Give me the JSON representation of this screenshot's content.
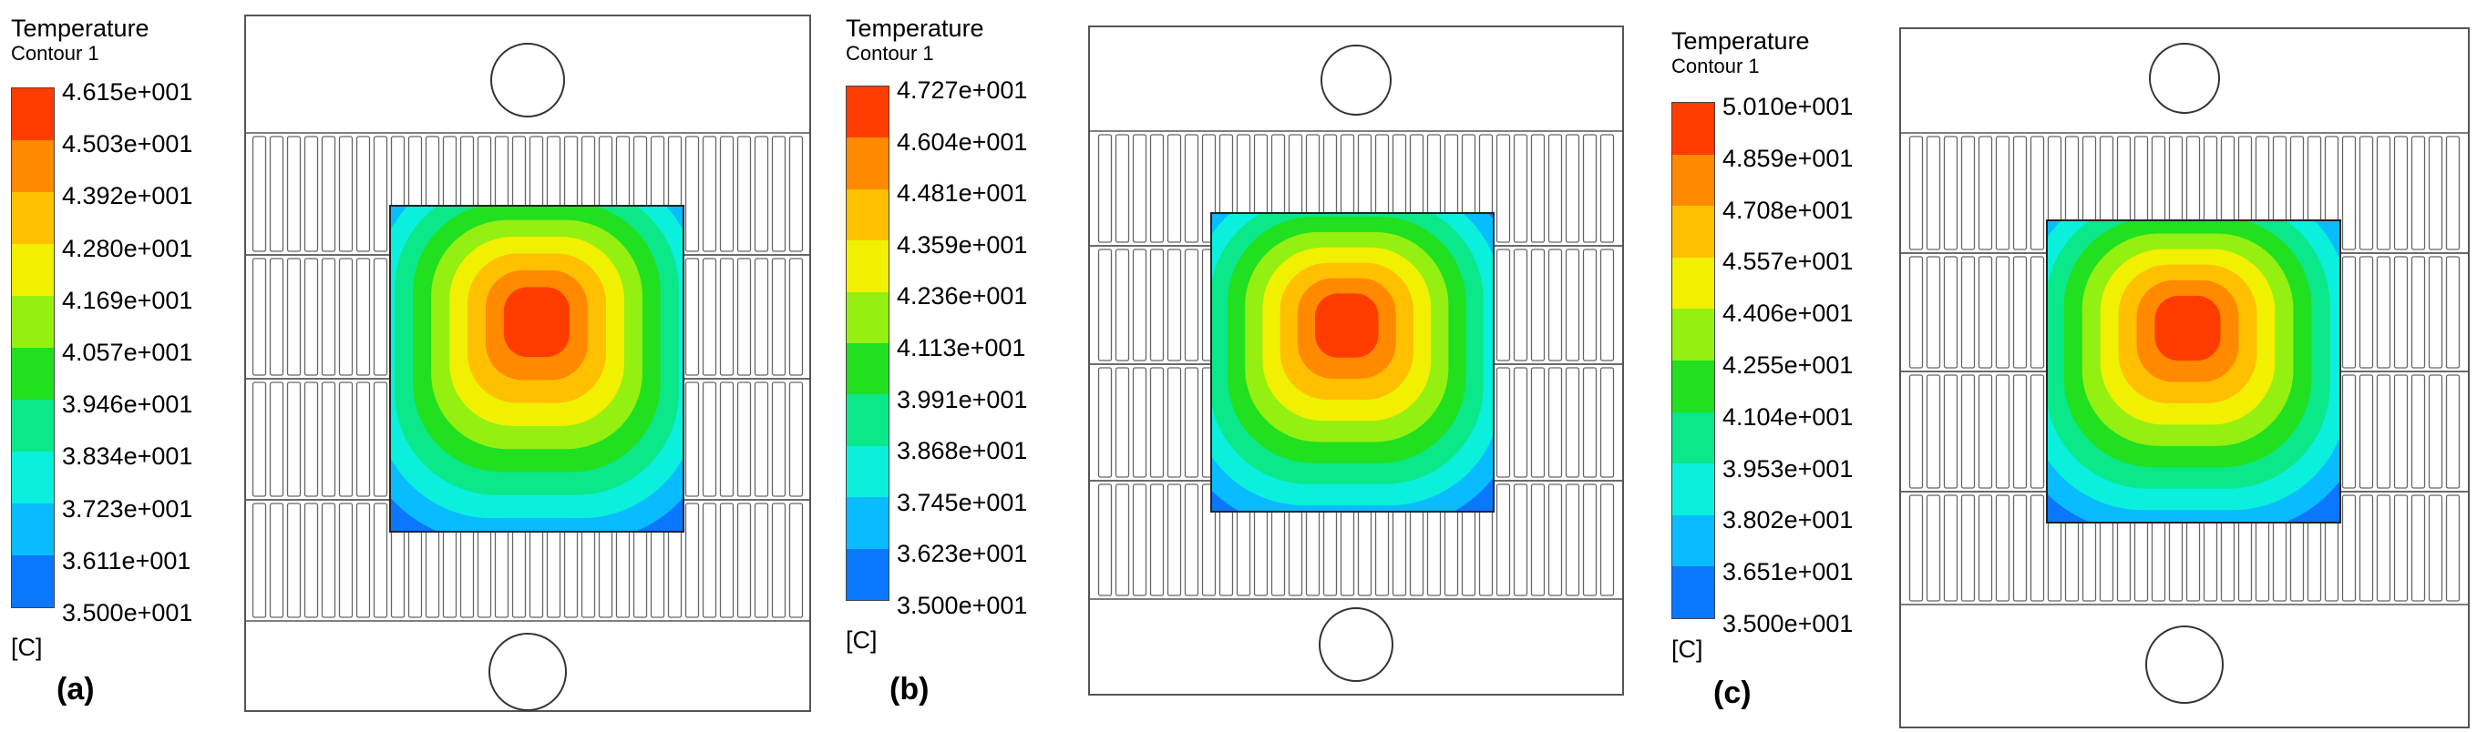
{
  "colors": {
    "contour_palette": [
      "#0a2cff",
      "#0a77ff",
      "#09bcff",
      "#0af0dc",
      "#0ae88a",
      "#20e020",
      "#93f010",
      "#f0f000",
      "#ffc000",
      "#ff8a00",
      "#ff3c00"
    ],
    "outline": "#555555",
    "background": "#ffffff"
  },
  "panels": [
    {
      "id": "a",
      "label": "(a)",
      "legend": {
        "title": "Temperature",
        "subtitle": "Contour 1",
        "unit": "[C]",
        "ticks": [
          "4.615e+001",
          "4.503e+001",
          "4.392e+001",
          "4.280e+001",
          "4.169e+001",
          "4.057e+001",
          "3.946e+001",
          "3.834e+001",
          "3.723e+001",
          "3.611e+001",
          "3.500e+001"
        ]
      },
      "field": {
        "max_temperature": 46.15,
        "min_temperature": 35.0
      }
    },
    {
      "id": "b",
      "label": "(b)",
      "legend": {
        "title": "Temperature",
        "subtitle": "Contour 1",
        "unit": "[C]",
        "ticks": [
          "4.727e+001",
          "4.604e+001",
          "4.481e+001",
          "4.359e+001",
          "4.236e+001",
          "4.113e+001",
          "3.991e+001",
          "3.868e+001",
          "3.745e+001",
          "3.623e+001",
          "3.500e+001"
        ]
      },
      "field": {
        "max_temperature": 47.27,
        "min_temperature": 35.0
      }
    },
    {
      "id": "c",
      "label": "(c)",
      "legend": {
        "title": "Temperature",
        "subtitle": "Contour 1",
        "unit": "[C]",
        "ticks": [
          "5.010e+001",
          "4.859e+001",
          "4.708e+001",
          "4.557e+001",
          "4.406e+001",
          "4.255e+001",
          "4.104e+001",
          "3.953e+001",
          "3.802e+001",
          "3.651e+001",
          "3.500e+001"
        ]
      },
      "field": {
        "max_temperature": 50.1,
        "min_temperature": 35.0
      }
    }
  ]
}
